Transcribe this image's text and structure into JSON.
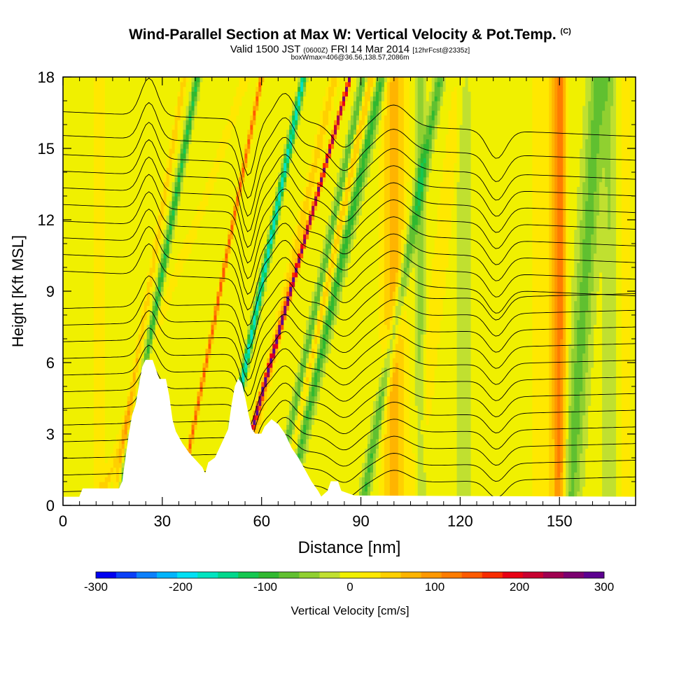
{
  "header": {
    "title": "Wind-Parallel Section at Max W: Vertical Velocity & Pot.Temp.",
    "title_mark": "(C)",
    "subtitle_main_a": "Valid 1500 JST",
    "subtitle_small_a": "(0600Z)",
    "subtitle_main_b": "FRI 14 Mar 2014",
    "subtitle_small_b": "[12hrFcst@2335z]",
    "subtitle2": "boxWmax=406@36.56,138.57,2086m"
  },
  "chart_data": {
    "type": "heatmap",
    "title": "Wind-Parallel Section at Max W: Vertical Velocity & Pot.Temp.",
    "xlabel": "Distance [nm]",
    "ylabel": "Height [Kft MSL]",
    "xlim": [
      0,
      173
    ],
    "ylim": [
      0,
      18
    ],
    "x_ticks": [
      0,
      30,
      60,
      90,
      120,
      150
    ],
    "y_ticks": [
      0,
      3,
      6,
      9,
      12,
      15,
      18
    ],
    "colorbar": {
      "label": "Vertical Velocity [cm/s]",
      "range": [
        -300,
        300
      ],
      "ticks": [
        -300,
        -200,
        -100,
        0,
        100,
        200,
        300
      ],
      "colors": [
        "#0000f0",
        "#0a40f8",
        "#0c80fc",
        "#00b4fc",
        "#00e0f4",
        "#00e4c0",
        "#00d88c",
        "#14c850",
        "#30b830",
        "#60c030",
        "#90d030",
        "#c0e030",
        "#f0f000",
        "#ffe800",
        "#ffd000",
        "#ffb400",
        "#ff9800",
        "#ff7c00",
        "#ff5a00",
        "#f82c00",
        "#e80014",
        "#c80030",
        "#a00050",
        "#7c0070",
        "#5c0090"
      ]
    },
    "background_value": 0,
    "updraft_bands": [
      {
        "x": 22.5,
        "y": 6.2,
        "slope": 1.2,
        "width": 0.8,
        "value": 60
      },
      {
        "x": 33,
        "y": 9,
        "slope": 2.4,
        "width": 1.8,
        "value": 40
      },
      {
        "x": 53,
        "y": 13,
        "slope": 1.4,
        "width": 0.6,
        "value": 140
      },
      {
        "x": 58.7,
        "y": 4,
        "slope": 2.0,
        "width": 0.6,
        "value": 260
      },
      {
        "x": 66,
        "y": 8,
        "slope": 1.6,
        "width": 1.4,
        "value": 50
      },
      {
        "x": 75,
        "y": 6,
        "slope": 1.5,
        "width": 1.6,
        "value": 70
      },
      {
        "x": 100,
        "y": 12,
        "slope": 0,
        "width": 3.2,
        "value": 70
      },
      {
        "x": 145,
        "y": 9,
        "slope": 0,
        "width": 3.0,
        "value": 35
      },
      {
        "x": 150,
        "y": 3,
        "slope": 0,
        "width": 2.0,
        "value": 120
      },
      {
        "x": 11,
        "y": 4,
        "slope": 0,
        "width": 1.8,
        "value": 30
      },
      {
        "x": 113,
        "y": 9,
        "slope": 0.8,
        "width": 2.4,
        "value": 30
      },
      {
        "x": 170,
        "y": 12,
        "slope": 0,
        "width": 1.6,
        "value": 35
      }
    ],
    "downdraft_bands": [
      {
        "x": 27,
        "y": 7.5,
        "slope": 1.3,
        "width": 1.0,
        "value": -110
      },
      {
        "x": 56,
        "y": 6.5,
        "slope": 1.45,
        "width": 0.9,
        "value": -170
      },
      {
        "x": 80.5,
        "y": 11,
        "slope": 1.5,
        "width": 1.3,
        "value": -90
      },
      {
        "x": 90,
        "y": 14,
        "slope": 1.6,
        "width": 1.8,
        "value": -100
      },
      {
        "x": 97,
        "y": 5,
        "slope": 1.3,
        "width": 1.5,
        "value": -85
      },
      {
        "x": 108,
        "y": 4,
        "slope": 0,
        "width": 1.6,
        "value": -45
      },
      {
        "x": 121,
        "y": 7,
        "slope": 0,
        "width": 2.2,
        "value": -35
      },
      {
        "x": 158,
        "y": 10,
        "slope": 0.5,
        "width": 3.0,
        "value": -70
      },
      {
        "x": 40,
        "y": 12,
        "slope": 2.2,
        "width": 1.4,
        "value": -25
      },
      {
        "x": 165,
        "y": 6,
        "slope": 0,
        "width": 1.8,
        "value": -35
      }
    ],
    "terrain": [
      [
        0,
        0.35
      ],
      [
        5,
        0.35
      ],
      [
        6,
        0.7
      ],
      [
        17,
        0.7
      ],
      [
        18,
        1.0
      ],
      [
        19,
        2.0
      ],
      [
        20,
        3.0
      ],
      [
        21,
        3.8
      ],
      [
        22,
        4.2
      ],
      [
        23,
        5.0
      ],
      [
        24,
        5.8
      ],
      [
        25,
        6.1
      ],
      [
        27,
        6.1
      ],
      [
        28,
        5.7
      ],
      [
        29,
        5.3
      ],
      [
        31,
        5.3
      ],
      [
        32,
        4.6
      ],
      [
        33,
        3.6
      ],
      [
        34,
        3.1
      ],
      [
        36,
        2.6
      ],
      [
        38,
        2.2
      ],
      [
        40,
        1.9
      ],
      [
        42,
        1.6
      ],
      [
        43,
        1.3
      ],
      [
        44,
        1.8
      ],
      [
        46,
        2.0
      ],
      [
        48,
        2.6
      ],
      [
        50,
        3.2
      ],
      [
        51,
        4.2
      ],
      [
        52,
        5.0
      ],
      [
        53,
        5.3
      ],
      [
        54,
        5.1
      ],
      [
        55,
        4.5
      ],
      [
        56,
        3.8
      ],
      [
        57,
        3.2
      ],
      [
        58,
        3.0
      ],
      [
        60,
        3.0
      ],
      [
        61,
        3.3
      ],
      [
        63,
        3.6
      ],
      [
        65,
        3.4
      ],
      [
        67,
        3.0
      ],
      [
        69,
        2.4
      ],
      [
        71,
        2.0
      ],
      [
        73,
        1.5
      ],
      [
        75,
        1.0
      ],
      [
        77,
        0.6
      ],
      [
        78,
        0.35
      ],
      [
        80,
        0.6
      ],
      [
        81,
        1.0
      ],
      [
        83,
        1.0
      ],
      [
        84,
        0.6
      ],
      [
        88,
        0.4
      ],
      [
        173,
        0.35
      ]
    ],
    "theta_contours": {
      "count": 22,
      "base_heights": [
        0.9,
        1.6,
        2.3,
        3.0,
        3.7,
        4.4,
        5.1,
        5.8,
        6.5,
        7.2,
        7.9,
        8.6,
        9.3,
        10.0,
        10.7,
        11.4,
        12.1,
        12.8,
        13.5,
        14.2,
        15.0,
        16.0
      ],
      "waves": [
        {
          "x": 26,
          "amp": 1.6,
          "width": 3.5
        },
        {
          "x": 56,
          "amp": -2.4,
          "width": 3.0
        },
        {
          "x": 67,
          "amp": 1.2,
          "width": 4.0
        },
        {
          "x": 85,
          "amp": -1.0,
          "width": 5.0
        },
        {
          "x": 100,
          "amp": 0.9,
          "width": 6.0
        },
        {
          "x": 131,
          "amp": -1.2,
          "width": 4.0
        }
      ]
    }
  },
  "colorbar_label": "Vertical Velocity [cm/s]"
}
